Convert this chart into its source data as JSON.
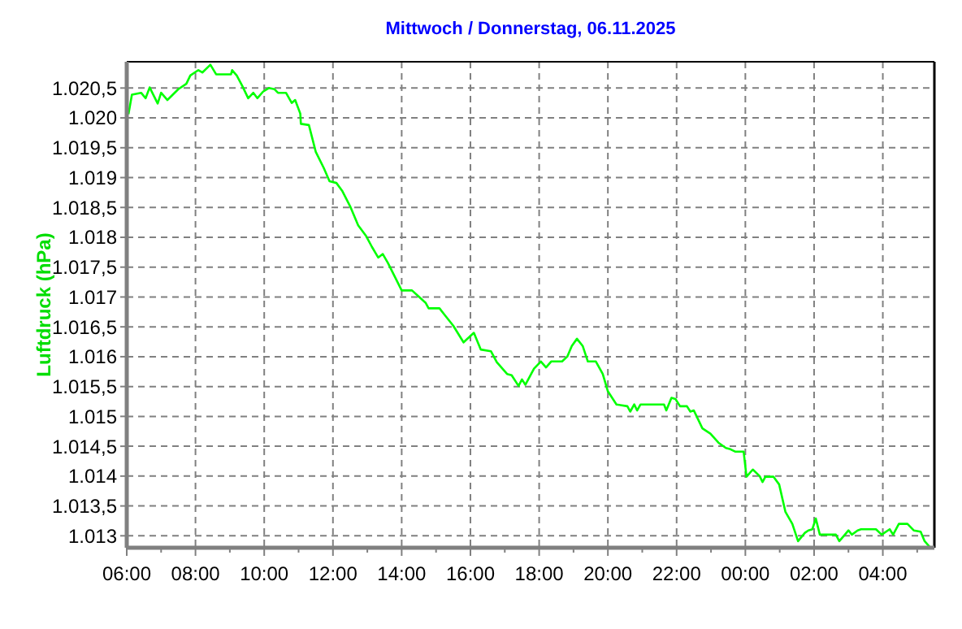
{
  "chart_data": {
    "type": "line",
    "title": "Mittwoch / Donnerstag, 06.11.2025",
    "ylabel": "Luftdruck  (hPa)",
    "xlim": [
      "2025-11-05T06:00",
      "2025-11-06T05:30"
    ],
    "xticks": [
      {
        "value": "2025-11-05T06:00",
        "label": "06:00"
      },
      {
        "value": "2025-11-05T07:00",
        "label": null
      },
      {
        "value": "2025-11-05T08:00",
        "label": "08:00"
      },
      {
        "value": "2025-11-05T09:00",
        "label": null
      },
      {
        "value": "2025-11-05T10:00",
        "label": "10:00"
      },
      {
        "value": "2025-11-05T11:00",
        "label": null
      },
      {
        "value": "2025-11-05T12:00",
        "label": "12:00"
      },
      {
        "value": "2025-11-05T13:00",
        "label": null
      },
      {
        "value": "2025-11-05T14:00",
        "label": "14:00"
      },
      {
        "value": "2025-11-05T15:00",
        "label": null
      },
      {
        "value": "2025-11-05T16:00",
        "label": "16:00"
      },
      {
        "value": "2025-11-05T17:00",
        "label": null
      },
      {
        "value": "2025-11-05T18:00",
        "label": "18:00"
      },
      {
        "value": "2025-11-05T19:00",
        "label": null
      },
      {
        "value": "2025-11-05T20:00",
        "label": "20:00"
      },
      {
        "value": "2025-11-05T21:00",
        "label": null
      },
      {
        "value": "2025-11-05T22:00",
        "label": "22:00"
      },
      {
        "value": "2025-11-05T23:00",
        "label": null
      },
      {
        "value": "2025-11-06T00:00",
        "label": "00:00"
      },
      {
        "value": "2025-11-06T01:00",
        "label": null
      },
      {
        "value": "2025-11-06T02:00",
        "label": "02:00"
      },
      {
        "value": "2025-11-06T03:00",
        "label": null
      },
      {
        "value": "2025-11-06T04:00",
        "label": "04:00"
      },
      {
        "value": "2025-11-06T05:00",
        "label": null
      }
    ],
    "ylim": [
      1012.8,
      1020.94
    ],
    "yticks": [
      {
        "value": 1013,
        "label": "1.013"
      },
      {
        "value": 1013.5,
        "label": "1.013,5"
      },
      {
        "value": 1014,
        "label": "1.014"
      },
      {
        "value": 1014.5,
        "label": "1.014,5"
      },
      {
        "value": 1015,
        "label": "1.015"
      },
      {
        "value": 1015.5,
        "label": "1.015,5"
      },
      {
        "value": 1016,
        "label": "1.016"
      },
      {
        "value": 1016.5,
        "label": "1.016,5"
      },
      {
        "value": 1017,
        "label": "1.017"
      },
      {
        "value": 1017.5,
        "label": "1.017,5"
      },
      {
        "value": 1018,
        "label": "1.018"
      },
      {
        "value": 1018.5,
        "label": "1.018,5"
      },
      {
        "value": 1019,
        "label": "1.019"
      },
      {
        "value": 1019.5,
        "label": "1.019,5"
      },
      {
        "value": 1020,
        "label": "1.020"
      },
      {
        "value": 1020.5,
        "label": "1.020,5"
      }
    ],
    "grid": true,
    "line_style": "solid",
    "series": [
      {
        "color": "#00ff00",
        "x": [
          "2025-11-05T06:03",
          "2025-11-05T06:09",
          "2025-11-05T06:25",
          "2025-11-05T06:33",
          "2025-11-05T06:40",
          "2025-11-05T06:54",
          "2025-11-05T07:00",
          "2025-11-05T07:11",
          "2025-11-05T07:30",
          "2025-11-05T07:44",
          "2025-11-05T07:51",
          "2025-11-05T08:05",
          "2025-11-05T08:12",
          "2025-11-05T08:26",
          "2025-11-05T08:36",
          "2025-11-05T09:02",
          "2025-11-05T09:04",
          "2025-11-05T09:12",
          "2025-11-05T09:22",
          "2025-11-05T09:32",
          "2025-11-05T09:41",
          "2025-11-05T09:48",
          "2025-11-05T09:58",
          "2025-11-05T10:08",
          "2025-11-05T10:18",
          "2025-11-05T10:24",
          "2025-11-05T10:38",
          "2025-11-05T10:48",
          "2025-11-05T10:54",
          "2025-11-05T11:03",
          "2025-11-05T11:04",
          "2025-11-05T11:18",
          "2025-11-05T11:30",
          "2025-11-05T11:44",
          "2025-11-05T11:54",
          "2025-11-05T12:06",
          "2025-11-05T12:16",
          "2025-11-05T12:30",
          "2025-11-05T12:44",
          "2025-11-05T12:58",
          "2025-11-05T13:08",
          "2025-11-05T13:19",
          "2025-11-05T13:27",
          "2025-11-05T13:36",
          "2025-11-05T14:00",
          "2025-11-05T14:18",
          "2025-11-05T14:42",
          "2025-11-05T14:47",
          "2025-11-05T15:06",
          "2025-11-05T15:15",
          "2025-11-05T15:30",
          "2025-11-05T15:48",
          "2025-11-05T16:06",
          "2025-11-05T16:18",
          "2025-11-05T16:36",
          "2025-11-05T16:46",
          "2025-11-05T17:04",
          "2025-11-05T17:12",
          "2025-11-05T17:24",
          "2025-11-05T17:30",
          "2025-11-05T17:36",
          "2025-11-05T17:51",
          "2025-11-05T18:03",
          "2025-11-05T18:12",
          "2025-11-05T18:21",
          "2025-11-05T18:40",
          "2025-11-05T18:49",
          "2025-11-05T18:57",
          "2025-11-05T19:06",
          "2025-11-05T19:16",
          "2025-11-05T19:25",
          "2025-11-05T19:39",
          "2025-11-05T19:51",
          "2025-11-05T20:00",
          "2025-11-05T20:15",
          "2025-11-05T20:34",
          "2025-11-05T20:39",
          "2025-11-05T20:46",
          "2025-11-05T20:51",
          "2025-11-05T20:57",
          "2025-11-05T21:38",
          "2025-11-05T21:42",
          "2025-11-05T21:51",
          "2025-11-05T21:58",
          "2025-11-05T22:06",
          "2025-11-05T22:18",
          "2025-11-05T22:24",
          "2025-11-05T22:30",
          "2025-11-05T22:45",
          "2025-11-05T22:59",
          "2025-11-05T23:13",
          "2025-11-05T23:26",
          "2025-11-05T23:34",
          "2025-11-05T23:42",
          "2025-11-05T23:57",
          "2025-11-06T00:02",
          "2025-11-06T00:13",
          "2025-11-06T00:25",
          "2025-11-06T00:30",
          "2025-11-06T00:35",
          "2025-11-06T00:49",
          "2025-11-06T00:59",
          "2025-11-06T01:10",
          "2025-11-06T01:22",
          "2025-11-06T01:32",
          "2025-11-06T01:44",
          "2025-11-06T01:50",
          "2025-11-06T01:57",
          "2025-11-06T02:03",
          "2025-11-06T02:10",
          "2025-11-06T02:38",
          "2025-11-06T02:44",
          "2025-11-06T02:52",
          "2025-11-06T03:00",
          "2025-11-06T03:06",
          "2025-11-06T03:16",
          "2025-11-06T03:22",
          "2025-11-06T03:48",
          "2025-11-06T03:58",
          "2025-11-06T04:12",
          "2025-11-06T04:18",
          "2025-11-06T04:28",
          "2025-11-06T04:43",
          "2025-11-06T04:54",
          "2025-11-06T05:06",
          "2025-11-06T05:13",
          "2025-11-06T05:23"
        ],
        "values": [
          1020.06,
          1020.39,
          1020.42,
          1020.33,
          1020.51,
          1020.24,
          1020.42,
          1020.3,
          1020.48,
          1020.57,
          1020.71,
          1020.8,
          1020.76,
          1020.89,
          1020.73,
          1020.73,
          1020.8,
          1020.71,
          1020.53,
          1020.33,
          1020.42,
          1020.33,
          1020.44,
          1020.5,
          1020.48,
          1020.42,
          1020.42,
          1020.25,
          1020.3,
          1020.07,
          1019.9,
          1019.88,
          1019.43,
          1019.16,
          1018.94,
          1018.91,
          1018.78,
          1018.52,
          1018.2,
          1018.02,
          1017.84,
          1017.66,
          1017.72,
          1017.57,
          1017.11,
          1017.11,
          1016.9,
          1016.81,
          1016.81,
          1016.7,
          1016.52,
          1016.24,
          1016.4,
          1016.12,
          1016.09,
          1015.91,
          1015.71,
          1015.69,
          1015.51,
          1015.62,
          1015.53,
          1015.8,
          1015.92,
          1015.82,
          1015.92,
          1015.92,
          1016.0,
          1016.18,
          1016.3,
          1016.18,
          1015.92,
          1015.92,
          1015.71,
          1015.42,
          1015.2,
          1015.17,
          1015.08,
          1015.2,
          1015.1,
          1015.2,
          1015.2,
          1015.1,
          1015.31,
          1015.29,
          1015.17,
          1015.17,
          1015.08,
          1015.1,
          1014.8,
          1014.71,
          1014.56,
          1014.47,
          1014.45,
          1014.41,
          1014.41,
          1013.99,
          1014.11,
          1014.0,
          1013.9,
          1013.99,
          1013.99,
          1013.86,
          1013.4,
          1013.2,
          1012.91,
          1013.05,
          1013.09,
          1013.11,
          1013.29,
          1013.02,
          1013.02,
          1012.91,
          1013.0,
          1013.09,
          1013.02,
          1013.09,
          1013.11,
          1013.11,
          1013.02,
          1013.11,
          1013.02,
          1013.2,
          1013.2,
          1013.09,
          1013.07,
          1012.91,
          1012.8
        ]
      }
    ]
  }
}
